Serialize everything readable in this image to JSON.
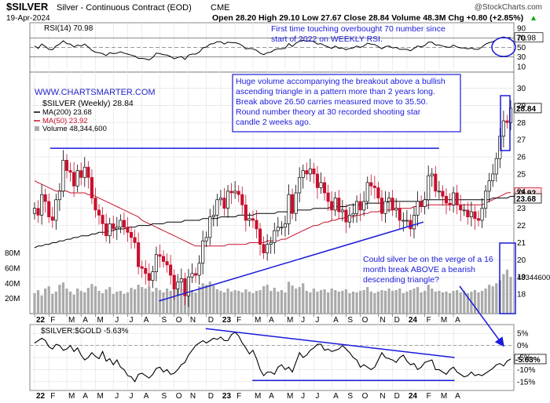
{
  "header": {
    "symbol": "$SILVER",
    "desc": "Silver - Continuous Contract (EOD)",
    "exchange": "CME",
    "date": "19-Apr-2024",
    "ohlc": "Open 28.20  High 29.10  Low 27.67  Close 28.84  Volume 48.3M  Chg +0.80 (+2.85%)",
    "ohlc_arrow": "▲",
    "credit": "@StockCharts.com"
  },
  "rsi_panel": {
    "label": "RSI(14) 70.98",
    "current_label": "70.98",
    "ticks": [
      "90",
      "70",
      "50",
      "30",
      "10"
    ],
    "annotation": [
      "First time touching overbought 70 number since",
      "start of 2022 on WEEKLY RSI."
    ]
  },
  "price_panel": {
    "watermark": "WWW.CHARTSMARTER.COM",
    "legend": {
      "title": "$SILVER (Weekly) 28.84",
      "ma200": "MA(200) 23.68",
      "ma50": "MA(50) 23.92",
      "volume": "Volume 48,344,600"
    },
    "price_ticks": [
      "30",
      "29",
      "28",
      "27",
      "26",
      "25",
      "24",
      "23",
      "22",
      "21",
      "20",
      "19",
      "18"
    ],
    "volume_ticks": [
      "80M",
      "60M",
      "40M",
      "20M"
    ],
    "last_price_label": "28.84",
    "ma50_label": "23.92",
    "ma200_label": "23.68",
    "volume_label": "48344600",
    "annotation_main": [
      "Huge volume accompanying the breakout above a bullish",
      "ascending triangle in a pattern more than 2 years long.",
      "Break above 26.50 carries measured move to 35.50.",
      "Round number theory at 30 recorded shooting star",
      "candle 2 weeks ago."
    ],
    "annotation_lower": [
      "Could silver be on the verge of a 16",
      "month break ABOVE a bearish",
      "descending triangle?"
    ]
  },
  "ratio_panel": {
    "label": "$SILVER:$GOLD -5.63%",
    "current_label": "-5.63%",
    "ticks": [
      "5%",
      "0%",
      "-5%",
      "-10%",
      "-15%"
    ]
  },
  "x_axis": {
    "labels": [
      "22",
      "F",
      "M",
      "A",
      "M",
      "J",
      "J",
      "A",
      "S",
      "O",
      "N",
      "D",
      "23",
      "F",
      "M",
      "A",
      "M",
      "J",
      "J",
      "A",
      "S",
      "O",
      "N",
      "D",
      "24",
      "F",
      "M",
      "A"
    ]
  },
  "colors": {
    "up": "#ffffff",
    "down": "#c8102e",
    "ma50": "#c8102e",
    "ma200": "#000000",
    "trend": "#1a1adc",
    "annotation": "#1a1adc",
    "volume": "#aaaaaa"
  },
  "chart_data": {
    "type": "candlestick",
    "interval": "weekly",
    "start": "2022-01-03",
    "x_labels": [
      "22",
      "F",
      "M",
      "A",
      "M",
      "J",
      "J",
      "A",
      "S",
      "O",
      "N",
      "D",
      "23",
      "F",
      "M",
      "A",
      "M",
      "J",
      "J",
      "A",
      "S",
      "O",
      "N",
      "D",
      "24",
      "F",
      "M",
      "A"
    ],
    "price_ylim": [
      17,
      30.8
    ],
    "closes": [
      23.0,
      22.6,
      23.8,
      23.4,
      22.5,
      22.3,
      23.5,
      24.0,
      25.8,
      25.2,
      25.1,
      24.3,
      25.2,
      24.8,
      25.4,
      24.8,
      23.6,
      22.9,
      22.6,
      22.1,
      21.4,
      22.1,
      21.8,
      21.9,
      22.3,
      21.9,
      21.6,
      21.3,
      21.0,
      19.6,
      19.5,
      19.2,
      18.8,
      19.3,
      20.3,
      20.2,
      19.9,
      19.7,
      19.1,
      18.3,
      18.7,
      18.9,
      17.9,
      19.0,
      19.2,
      19.1,
      19.8,
      21.1,
      21.3,
      22.5,
      22.6,
      23.5,
      23.6,
      23.0,
      24.0,
      23.9,
      24.0,
      23.8,
      23.2,
      22.3,
      22.4,
      22.3,
      21.8,
      20.9,
      20.4,
      20.9,
      21.0,
      21.7,
      21.9,
      21.9,
      22.1,
      23.8,
      22.7,
      23.9,
      24.8,
      25.2,
      25.0,
      25.3,
      25.0,
      24.2,
      24.5,
      23.9,
      23.4,
      22.9,
      23.6,
      22.8,
      22.9,
      22.2,
      22.6,
      22.7,
      23.4,
      22.9,
      23.4,
      24.5,
      24.3,
      24.2,
      23.6,
      22.7,
      23.4,
      23.6,
      22.9,
      23.0,
      22.3,
      22.3,
      22.3,
      21.8,
      22.6,
      23.4,
      23.1,
      23.5,
      24.9,
      25.0,
      24.0,
      24.0,
      23.7,
      23.3,
      23.2,
      23.9,
      23.2,
      22.9,
      22.9,
      22.5,
      22.8,
      22.4,
      22.3,
      23.0,
      24.0,
      24.6,
      25.0,
      25.9,
      27.2,
      28.1,
      28.0,
      28.84
    ],
    "ma50": [
      24.6,
      24.5,
      24.4,
      24.3,
      24.2,
      24.1,
      24.0,
      24.0,
      24.0,
      24.0,
      23.9,
      23.9,
      23.9,
      23.9,
      23.9,
      23.8,
      23.8,
      23.7,
      23.6,
      23.5,
      23.4,
      23.3,
      23.2,
      23.1,
      23.0,
      22.9,
      22.8,
      22.7,
      22.6,
      22.5,
      22.3,
      22.2,
      22.1,
      22.0,
      21.9,
      21.8,
      21.7,
      21.6,
      21.5,
      21.4,
      21.3,
      21.2,
      21.1,
      21.0,
      20.9,
      20.8,
      20.8,
      20.8,
      20.8,
      20.8,
      20.8,
      20.8,
      20.8,
      20.8,
      20.9,
      20.9,
      20.9,
      20.9,
      20.9,
      20.9,
      21.0,
      21.0,
      21.0,
      21.0,
      21.0,
      21.1,
      21.1,
      21.1,
      21.1,
      21.2,
      21.2,
      21.3,
      21.4,
      21.5,
      21.6,
      21.7,
      21.8,
      21.9,
      22.0,
      22.0,
      22.1,
      22.2,
      22.2,
      22.3,
      22.3,
      22.4,
      22.4,
      22.5,
      22.5,
      22.5,
      22.6,
      22.6,
      22.7,
      22.7,
      22.8,
      22.8,
      22.8,
      22.9,
      22.9,
      22.9,
      22.9,
      23.0,
      23.0,
      23.0,
      23.0,
      23.0,
      23.1,
      23.1,
      23.1,
      23.1,
      23.2,
      23.2,
      23.2,
      23.2,
      23.2,
      23.2,
      23.2,
      23.2,
      23.2,
      23.2,
      23.2,
      23.2,
      23.2,
      23.2,
      23.2,
      23.2,
      23.3,
      23.4,
      23.5,
      23.6,
      23.7,
      23.8,
      23.9,
      23.92
    ],
    "ma200": [
      20.7,
      20.8,
      20.8,
      20.9,
      20.9,
      21.0,
      21.0,
      21.1,
      21.1,
      21.2,
      21.2,
      21.3,
      21.3,
      21.4,
      21.4,
      21.4,
      21.5,
      21.5,
      21.6,
      21.6,
      21.6,
      21.7,
      21.7,
      21.8,
      21.8,
      21.8,
      21.9,
      21.9,
      21.9,
      22.0,
      22.0,
      22.0,
      22.0,
      22.1,
      22.1,
      22.1,
      22.1,
      22.2,
      22.2,
      22.2,
      22.2,
      22.2,
      22.3,
      22.3,
      22.3,
      22.3,
      22.3,
      22.4,
      22.4,
      22.4,
      22.4,
      22.4,
      22.5,
      22.5,
      22.5,
      22.5,
      22.5,
      22.6,
      22.6,
      22.6,
      22.6,
      22.6,
      22.7,
      22.7,
      22.7,
      22.7,
      22.7,
      22.7,
      22.8,
      22.8,
      22.8,
      22.8,
      22.8,
      22.9,
      22.9,
      22.9,
      22.9,
      22.9,
      23.0,
      23.0,
      23.0,
      23.0,
      23.0,
      23.1,
      23.1,
      23.1,
      23.1,
      23.1,
      23.2,
      23.2,
      23.2,
      23.2,
      23.2,
      23.3,
      23.3,
      23.3,
      23.3,
      23.3,
      23.3,
      23.4,
      23.4,
      23.4,
      23.4,
      23.4,
      23.4,
      23.4,
      23.4,
      23.4,
      23.4,
      23.5,
      23.5,
      23.5,
      23.5,
      23.5,
      23.5,
      23.5,
      23.5,
      23.5,
      23.5,
      23.5,
      23.5,
      23.5,
      23.5,
      23.5,
      23.5,
      23.5,
      23.5,
      23.5,
      23.6,
      23.6,
      23.6,
      23.6,
      23.6,
      23.7,
      23.7,
      23.68
    ],
    "volume_m": [
      27,
      31,
      24,
      33,
      36,
      26,
      29,
      38,
      41,
      33,
      29,
      25,
      33,
      30,
      28,
      34,
      39,
      36,
      30,
      27,
      32,
      35,
      26,
      29,
      30,
      26,
      28,
      34,
      32,
      38,
      35,
      33,
      36,
      29,
      34,
      31,
      28,
      33,
      30,
      38,
      36,
      32,
      35,
      34,
      31,
      28,
      36,
      40,
      38,
      42,
      37,
      32,
      30,
      28,
      33,
      29,
      31,
      30,
      28,
      32,
      29,
      27,
      30,
      31,
      36,
      38,
      30,
      34,
      29,
      31,
      28,
      42,
      37,
      33,
      35,
      40,
      30,
      28,
      33,
      29,
      31,
      32,
      28,
      33,
      31,
      29,
      30,
      32,
      27,
      29,
      28,
      30,
      31,
      35,
      29,
      27,
      29,
      31,
      30,
      33,
      30,
      31,
      33,
      27,
      29,
      31,
      33,
      35,
      28,
      30,
      38,
      33,
      29,
      30,
      28,
      29,
      27,
      30,
      31,
      28,
      30,
      27,
      29,
      31,
      28,
      30,
      33,
      38,
      36,
      40,
      44,
      52,
      58,
      48.3
    ],
    "volume_ylim": [
      0,
      95
    ],
    "rsi_ylim": [
      0,
      100
    ],
    "rsi_current": 70.98,
    "rsi_overbought": 70,
    "rsi_oversold": 30,
    "ratio_ylim": [
      -18,
      8
    ],
    "ratio_current": -5.63,
    "ratio_pct": [
      1.0,
      2.0,
      3.0,
      2.1,
      -0.5,
      -1.5,
      0.5,
      0.0,
      -2.0,
      -1.5,
      0.0,
      -2.5,
      -1.0,
      -4.0,
      -6.0,
      -5.0,
      -3.0,
      -4.5,
      -5.5,
      -2.5,
      -6.5,
      -5.5,
      -8.0,
      -6.0,
      -9.0,
      -10.0,
      -12.5,
      -13.0,
      -15.0,
      -12.0,
      -11.5,
      -12.5,
      -13.5,
      -12.0,
      -9.5,
      -9.0,
      -11.0,
      -10.0,
      -12.0,
      -11.5,
      -10.0,
      -8.0,
      -7.0,
      -4.0,
      -2.0,
      0.0,
      1.0,
      2.0,
      1.0,
      2.0,
      3.0,
      2.5,
      3.5,
      2.0,
      2.0,
      4.5,
      5.5,
      4.0,
      1.0,
      -1.0,
      -3.5,
      -2.0,
      -5.5,
      -10.0,
      -12.5,
      -11.0,
      -11.0,
      -12.0,
      -9.0,
      -8.0,
      -10.0,
      -9.0,
      -11.0,
      -7.0,
      -3.0,
      -5.0,
      -4.0,
      -2.0,
      -1.0,
      0.5,
      0.5,
      -2.0,
      -1.5,
      -2.5,
      -2.0,
      -1.5,
      0.0,
      -1.5,
      -3.0,
      -5.0,
      -6.0,
      -9.0,
      -8.0,
      -9.0,
      -10.0,
      -9.0,
      -6.0,
      -3.0,
      -5.0,
      -5.5,
      -6.0,
      -7.0,
      -5.0,
      -4.0,
      -6.5,
      -8.0,
      -7.5,
      -10.0,
      -9.0,
      -7.0,
      -6.5,
      -6.0,
      -10.0,
      -10.0,
      -11.0,
      -12.0,
      -10.0,
      -9.0,
      -11.0,
      -12.0,
      -13.0,
      -12.5,
      -11.0,
      -12.5,
      -12.0,
      -12.5,
      -11.5,
      -10.5,
      -9.5,
      -8.0,
      -7.5,
      -8.5,
      -6.5,
      -5.63
    ],
    "rsi": [
      53,
      48,
      57,
      52,
      46,
      45,
      53,
      57,
      64,
      58,
      57,
      51,
      55,
      53,
      57,
      51,
      44,
      40,
      39,
      37,
      33,
      39,
      37,
      38,
      41,
      38,
      36,
      34,
      32,
      27,
      27,
      26,
      24,
      29,
      38,
      37,
      35,
      34,
      31,
      26,
      29,
      31,
      25,
      34,
      36,
      36,
      40,
      49,
      51,
      57,
      58,
      62,
      62,
      57,
      61,
      60,
      60,
      58,
      54,
      47,
      48,
      47,
      44,
      38,
      35,
      39,
      40,
      45,
      47,
      47,
      48,
      58,
      52,
      59,
      63,
      65,
      63,
      64,
      62,
      57,
      58,
      54,
      51,
      48,
      53,
      48,
      49,
      45,
      48,
      49,
      53,
      50,
      53,
      59,
      57,
      56,
      52,
      47,
      52,
      53,
      49,
      50,
      46,
      46,
      46,
      43,
      48,
      53,
      51,
      54,
      61,
      61,
      55,
      55,
      53,
      51,
      50,
      55,
      51,
      49,
      49,
      47,
      49,
      46,
      46,
      51,
      57,
      60,
      62,
      66,
      70,
      72,
      70,
      70.98
    ],
    "trendlines": [
      {
        "name": "resistance",
        "from": [
          "2022-02",
          26.5
        ],
        "to": [
          "2024-03",
          26.5
        ]
      },
      {
        "name": "rising-support",
        "from": [
          "2022-09",
          17.6
        ],
        "to": [
          "2024-02",
          22.2
        ]
      },
      {
        "name": "ratio-declining-resistance",
        "from": [
          "2022-12",
          7
        ],
        "to": [
          "2024-04",
          -5
        ]
      },
      {
        "name": "ratio-support",
        "from": [
          "2023-03",
          -14.5
        ],
        "to": [
          "2024-04",
          -14.5
        ]
      }
    ]
  }
}
